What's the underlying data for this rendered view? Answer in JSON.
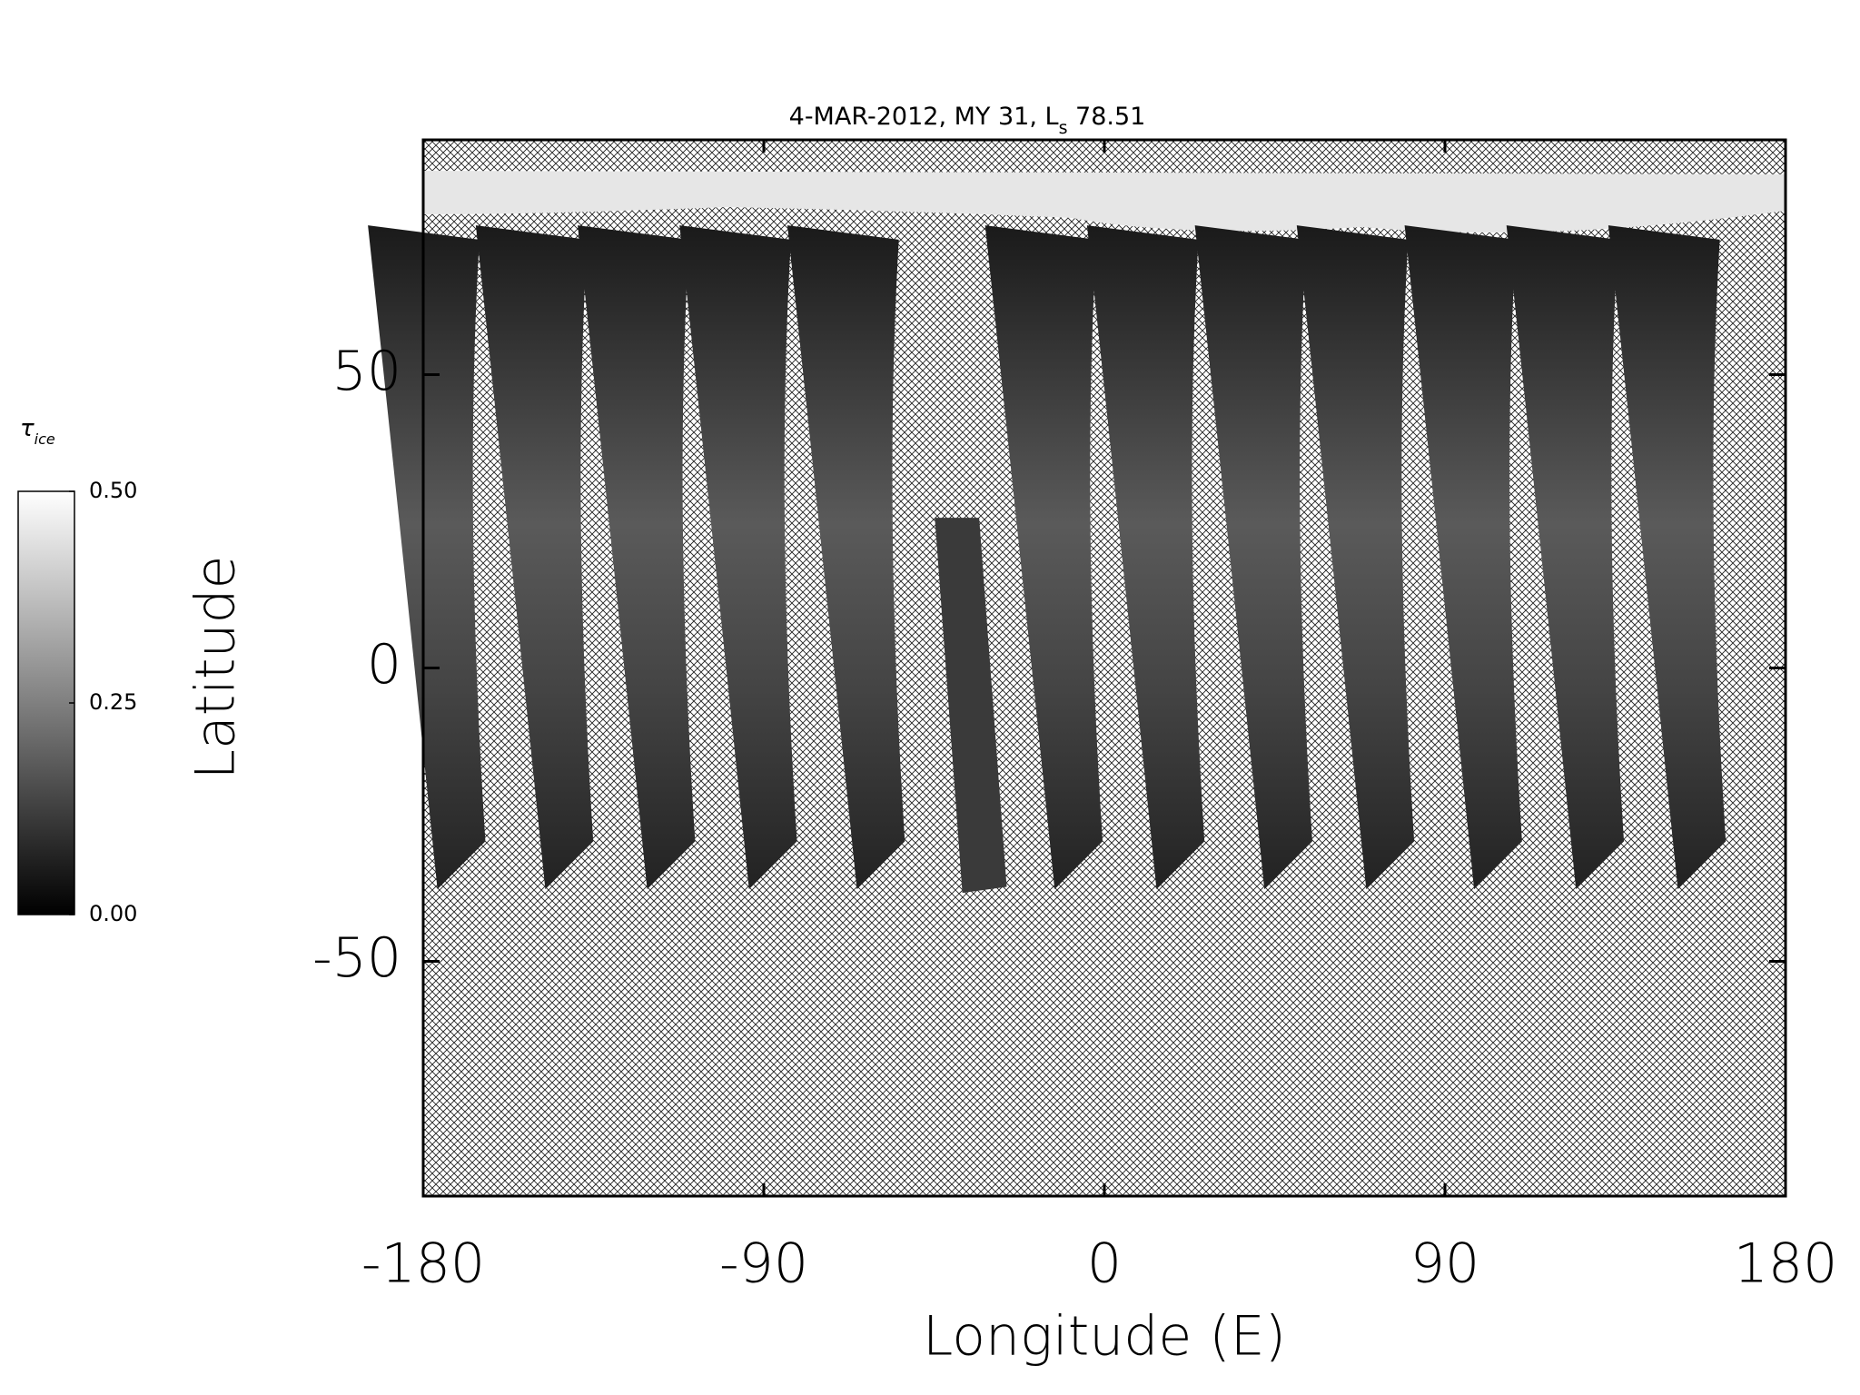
{
  "chart_data": {
    "type": "map",
    "title": [
      "4-MAR-2012, MY 31,  L",
      "s",
      " 78.51"
    ],
    "x_label": "Longitude (E)",
    "y_label": "Latitude",
    "xlim": [
      -180,
      180
    ],
    "xticks": [
      -180,
      -90,
      0,
      90,
      180
    ],
    "ylim": [
      -90,
      90
    ],
    "yticks": [
      -50,
      0,
      50
    ],
    "colorbar": {
      "label": [
        "τ",
        "ice"
      ],
      "lim": [
        0,
        0.5
      ],
      "ticks": [
        {
          "value": 0,
          "label": "0.00"
        },
        {
          "value": 0.25,
          "label": "0.25"
        },
        {
          "value": 0.5,
          "label": "0.50"
        }
      ]
    }
  }
}
